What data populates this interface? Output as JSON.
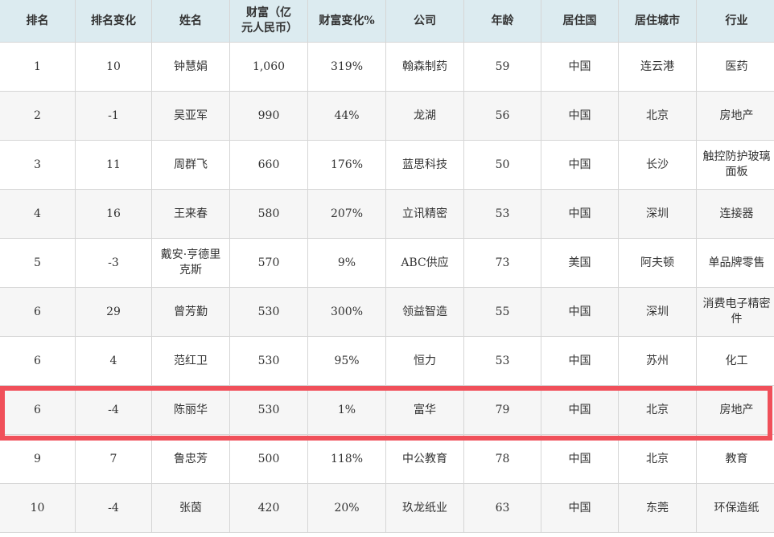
{
  "headers": [
    "排名",
    "排名变化",
    "姓名",
    "财富（亿元人民币）",
    "财富变化%",
    "公司",
    "年龄",
    "居住国",
    "居住城市",
    "行业"
  ],
  "rows": [
    [
      "1",
      "10",
      "钟慧娟",
      "1,060",
      "319%",
      "翰森制药",
      "59",
      "中国",
      "连云港",
      "医药"
    ],
    [
      "2",
      "-1",
      "吴亚军",
      "990",
      "44%",
      "龙湖",
      "56",
      "中国",
      "北京",
      "房地产"
    ],
    [
      "3",
      "11",
      "周群飞",
      "660",
      "176%",
      "蓝思科技",
      "50",
      "中国",
      "长沙",
      "触控防护玻璃面板"
    ],
    [
      "4",
      "16",
      "王来春",
      "580",
      "207%",
      "立讯精密",
      "53",
      "中国",
      "深圳",
      "连接器"
    ],
    [
      "5",
      "-3",
      "戴安·亨德里克斯",
      "570",
      "9%",
      "ABC供应",
      "73",
      "美国",
      "阿夫顿",
      "单品牌零售"
    ],
    [
      "6",
      "29",
      "曾芳勤",
      "530",
      "300%",
      "领益智造",
      "55",
      "中国",
      "深圳",
      "消费电子精密件"
    ],
    [
      "6",
      "4",
      "范红卫",
      "530",
      "95%",
      "恒力",
      "53",
      "中国",
      "苏州",
      "化工"
    ],
    [
      "6",
      "-4",
      "陈丽华",
      "530",
      "1%",
      "富华",
      "79",
      "中国",
      "北京",
      "房地产"
    ],
    [
      "9",
      "7",
      "鲁忠芳",
      "500",
      "118%",
      "中公教育",
      "78",
      "中国",
      "北京",
      "教育"
    ],
    [
      "10",
      "-4",
      "张茵",
      "420",
      "20%",
      "玖龙纸业",
      "63",
      "中国",
      "东莞",
      "环保造纸"
    ]
  ],
  "highlight_color": "#f0505a",
  "highlighted_row": 8
}
